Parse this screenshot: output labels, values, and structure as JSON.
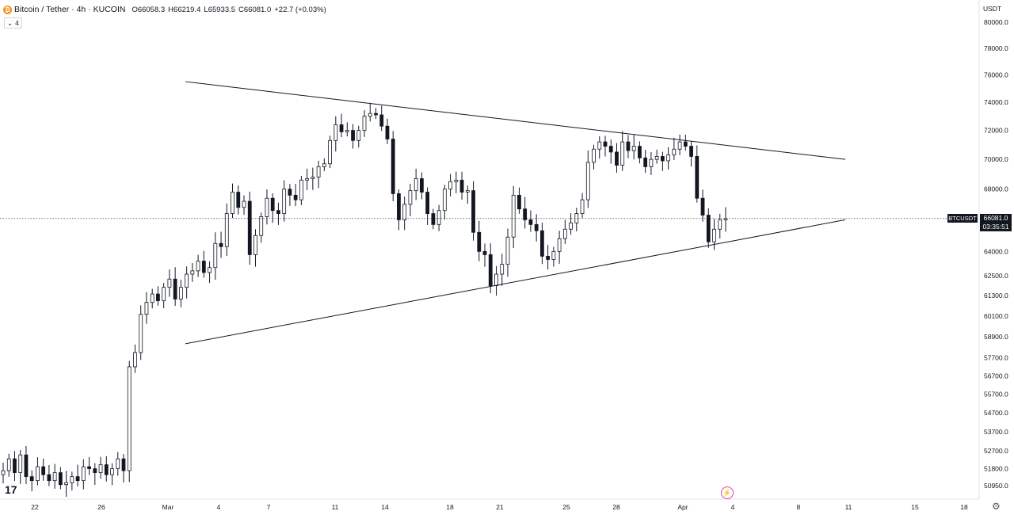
{
  "header": {
    "symbol": "Bitcoin / Tether · 4h · KUCOIN",
    "ohlc": [
      {
        "k": "O",
        "v": "66058.3"
      },
      {
        "k": "H",
        "v": "66219.4"
      },
      {
        "k": "L",
        "v": "65933.5"
      },
      {
        "k": "C",
        "v": "66081.0"
      },
      {
        "k": "",
        "v": "+22.7 (+0.03%)"
      }
    ],
    "indicator_count": "4",
    "coin_letter": "₿"
  },
  "price_scale": {
    "currency": "USDT",
    "ticks": [
      "80000.0",
      "78000.0",
      "76000.0",
      "74000.0",
      "72000.0",
      "70000.0",
      "68000.0",
      "64000.0",
      "62500.0",
      "61300.0",
      "60100.0",
      "58900.0",
      "57700.0",
      "56700.0",
      "55700.0",
      "54700.0",
      "53700.0",
      "52700.0",
      "51800.0",
      "50950.0"
    ]
  },
  "last_price": {
    "symbol": "BTCUSDT",
    "price": "66081.0",
    "countdown": "03:35:51",
    "value": 66081.0
  },
  "time_axis": {
    "ticks": [
      "22",
      "26",
      "Mar",
      "4",
      "7",
      "11",
      "14",
      "18",
      "21",
      "25",
      "28",
      "Apr",
      "4",
      "8",
      "11",
      "15",
      "18"
    ]
  },
  "icons": {
    "logo": "tradingview-logo-icon",
    "logo_text": "17",
    "flash": "lightning-icon",
    "gear": "gear-icon"
  },
  "colors": {
    "candle": "#131722",
    "background": "#ffffff",
    "badge": "#131722",
    "accent": "#e040a0"
  },
  "chart_data": {
    "type": "candlestick",
    "title": "Bitcoin / Tether · 4h · KUCOIN",
    "xlabel": "",
    "ylabel": "USDT",
    "ylim": [
      50500,
      81000
    ],
    "scale": "log",
    "grid": false,
    "time_range": [
      "Feb 20",
      "Apr 3"
    ],
    "series": [
      {
        "name": "BTCUSDT",
        "values": [
          51700,
          52300,
          51600,
          52500,
          51400,
          51200,
          51900,
          51500,
          51200,
          51600,
          51000,
          51100,
          51400,
          51200,
          51900,
          51800,
          51600,
          52000,
          51500,
          51800,
          52300,
          51700,
          57200,
          58000,
          60200,
          60900,
          61400,
          61000,
          61800,
          62300,
          61100,
          61800,
          62600,
          62800,
          63400,
          62700,
          63000,
          64500,
          64300,
          66400,
          67800,
          66800,
          67200,
          63800,
          65000,
          66200,
          67400,
          66600,
          66400,
          68000,
          67600,
          67300,
          68600,
          68700,
          68800,
          69500,
          69700,
          71300,
          72400,
          71900,
          72000,
          71300,
          72000,
          73000,
          73200,
          73100,
          72300,
          71400,
          67700,
          66000,
          67000,
          67900,
          68700,
          67800,
          66400,
          65700,
          66600,
          68000,
          68500,
          68600,
          67800,
          67900,
          65200,
          64000,
          63800,
          61900,
          62600,
          63200,
          64900,
          67600,
          66700,
          66000,
          65700,
          65300,
          63700,
          63500,
          64000,
          64800,
          65400,
          65800,
          66400,
          67300,
          69800,
          70700,
          71200,
          70900,
          70500,
          69600,
          71200,
          70600,
          70900,
          70100,
          69500,
          70000,
          70200,
          69900,
          70300,
          70700,
          71200,
          70900,
          70200,
          67400,
          66300,
          64600,
          65400,
          66000,
          66081
        ],
        "trendlines": [
          {
            "name": "upper",
            "points": [
              [
                "Feb 29",
                75500
              ],
              [
                "Apr 11",
                70000
              ]
            ]
          },
          {
            "name": "lower",
            "points": [
              [
                "Feb 29",
                58500
              ],
              [
                "Apr 11",
                66000
              ]
            ]
          }
        ]
      }
    ]
  }
}
